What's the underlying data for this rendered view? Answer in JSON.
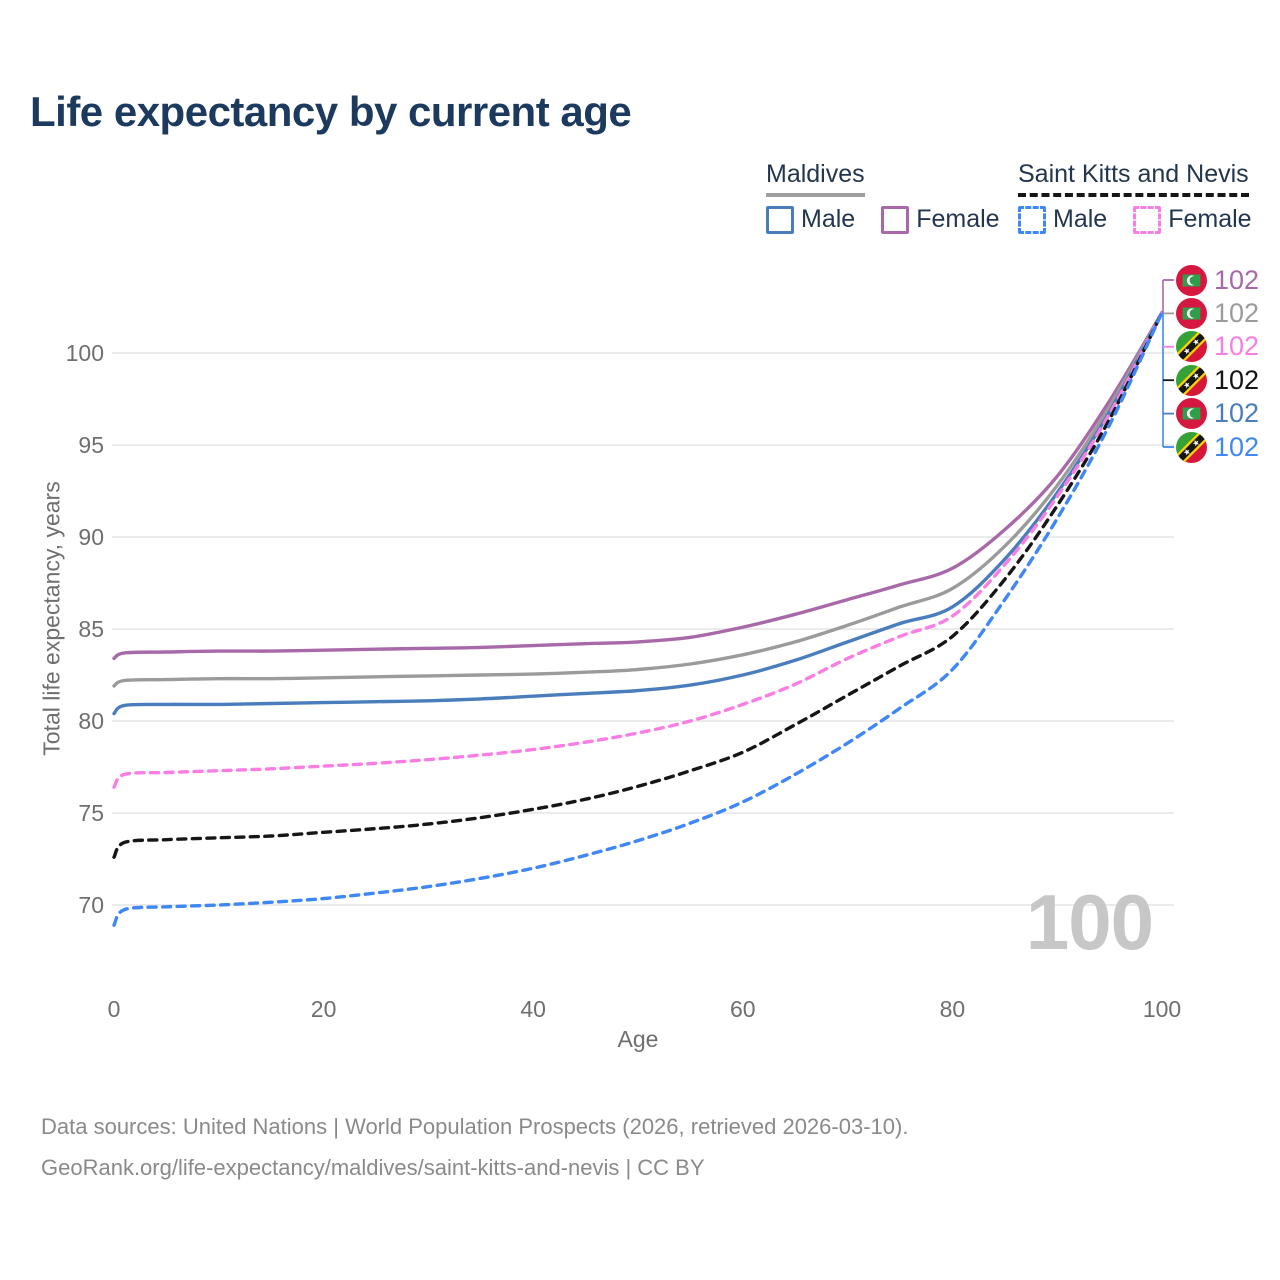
{
  "title": "Life expectancy by current age",
  "watermark": "100",
  "legend": {
    "groups": [
      {
        "name": "Maldives",
        "line_style": "solid",
        "underline_color": "#9e9e9e",
        "items": [
          {
            "label": "Male",
            "color": "#4a7dbb",
            "dashed": false
          },
          {
            "label": "Female",
            "color": "#a869a8",
            "dashed": false
          }
        ]
      },
      {
        "name": "Saint Kitts and Nevis",
        "line_style": "dashed",
        "underline_color": "#161616",
        "items": [
          {
            "label": "Male",
            "color": "#3f87f5",
            "dashed": true
          },
          {
            "label": "Female",
            "color": "#f97ee3",
            "dashed": true
          }
        ]
      }
    ]
  },
  "chart_data": {
    "type": "line",
    "title": "Life expectancy by current age",
    "xlabel": "Age",
    "ylabel": "Total life expectancy, years",
    "x_ticks": [
      0,
      20,
      40,
      60,
      80,
      100
    ],
    "y_ticks": [
      70,
      75,
      80,
      85,
      90,
      95,
      100
    ],
    "xlim": [
      0,
      100
    ],
    "ylim": [
      68,
      103
    ],
    "grid": "horizontal-only",
    "legend_position": "top-right",
    "ages": [
      0,
      1,
      5,
      10,
      15,
      20,
      25,
      30,
      35,
      40,
      45,
      50,
      55,
      60,
      65,
      70,
      75,
      80,
      85,
      90,
      95,
      100
    ],
    "series": [
      {
        "name": "Maldives Female",
        "country": "Maldives",
        "sex": "Female",
        "color": "#a869a8",
        "dashed": false,
        "values": [
          83.4,
          83.7,
          83.75,
          83.8,
          83.8,
          83.85,
          83.9,
          83.95,
          84.0,
          84.1,
          84.2,
          84.3,
          84.55,
          85.1,
          85.8,
          86.6,
          87.4,
          88.3,
          90.4,
          93.3,
          97.4,
          102.2
        ],
        "end_label": "102"
      },
      {
        "name": "Maldives Both sexes",
        "country": "Maldives",
        "sex": "Both",
        "color": "#9b9b9b",
        "dashed": false,
        "values": [
          81.9,
          82.2,
          82.25,
          82.3,
          82.3,
          82.35,
          82.4,
          82.45,
          82.5,
          82.55,
          82.65,
          82.8,
          83.1,
          83.6,
          84.3,
          85.2,
          86.2,
          87.2,
          89.5,
          92.8,
          97.1,
          102.2
        ],
        "end_label": "102"
      },
      {
        "name": "Maldives Male",
        "country": "Maldives",
        "sex": "Male",
        "color": "#4a7dbb",
        "dashed": false,
        "values": [
          80.4,
          80.85,
          80.9,
          80.9,
          80.95,
          81.0,
          81.05,
          81.1,
          81.2,
          81.35,
          81.5,
          81.65,
          81.95,
          82.5,
          83.3,
          84.3,
          85.3,
          86.2,
          88.8,
          92.4,
          96.8,
          102.2
        ],
        "end_label": "102"
      },
      {
        "name": "Saint Kitts and Nevis Female",
        "country": "Saint Kitts and Nevis",
        "sex": "Female",
        "color": "#f97ee3",
        "dashed": true,
        "values": [
          76.4,
          77.1,
          77.2,
          77.3,
          77.4,
          77.55,
          77.7,
          77.9,
          78.15,
          78.45,
          78.85,
          79.35,
          80.0,
          80.9,
          82.0,
          83.4,
          84.6,
          85.7,
          88.5,
          92.2,
          96.7,
          102.2
        ],
        "end_label": "102"
      },
      {
        "name": "Saint Kitts and Nevis Both sexes",
        "country": "Saint Kitts and Nevis",
        "sex": "Both",
        "color": "#161616",
        "dashed": true,
        "values": [
          72.6,
          73.4,
          73.55,
          73.65,
          73.75,
          73.95,
          74.15,
          74.4,
          74.75,
          75.2,
          75.75,
          76.45,
          77.3,
          78.3,
          79.8,
          81.4,
          83.0,
          84.6,
          87.7,
          91.7,
          96.4,
          102.2
        ],
        "end_label": "102"
      },
      {
        "name": "Saint Kitts and Nevis Male",
        "country": "Saint Kitts and Nevis",
        "sex": "Male",
        "color": "#3f87f5",
        "dashed": true,
        "values": [
          68.9,
          69.75,
          69.9,
          70.0,
          70.15,
          70.35,
          70.65,
          71.0,
          71.45,
          72.0,
          72.7,
          73.5,
          74.45,
          75.6,
          77.1,
          78.8,
          80.7,
          82.8,
          86.6,
          91.0,
          96.1,
          102.2
        ],
        "end_label": "102"
      }
    ]
  },
  "end_labels": [
    {
      "flag": "maldives",
      "value": "102",
      "color": "#a869a8"
    },
    {
      "flag": "maldives",
      "value": "102",
      "color": "#9b9b9b"
    },
    {
      "flag": "saint-kitts-and-nevis",
      "value": "102",
      "color": "#f97ee3"
    },
    {
      "flag": "saint-kitts-and-nevis",
      "value": "102",
      "color": "#161616"
    },
    {
      "flag": "maldives",
      "value": "102",
      "color": "#4a7dbb"
    },
    {
      "flag": "saint-kitts-and-nevis",
      "value": "102",
      "color": "#3f87f5"
    }
  ],
  "footer": {
    "line1": "Data sources: United Nations | World Population Prospects (2026, retrieved 2026-03-10).",
    "line2": "GeoRank.org/life-expectancy/maldives/saint-kitts-and-nevis | CC BY"
  }
}
